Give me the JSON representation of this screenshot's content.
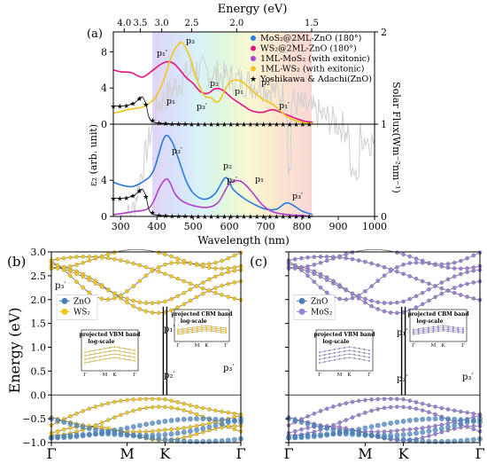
{
  "panel_a": {
    "letter": "(a)",
    "top_axis_label": "Energy (eV)",
    "top_ticks": [
      "4.0",
      "3.5",
      "3.0",
      "2.5",
      "2.0",
      "1.5"
    ],
    "right_axis_label": "Solar Flux(Wm⁻²nm⁻¹)",
    "right_ticks": [
      "0",
      "1",
      "2"
    ],
    "bottom_axis_label": "Wavelength (nm)",
    "left_axis_label": "ε₂ (arb. unit)",
    "left_ticks_upper": [
      "0",
      "4",
      "8"
    ],
    "left_ticks_lower": [
      "0",
      "4",
      "8"
    ],
    "legend": [
      {
        "label": "MoS₂@2ML-ZnO (180°)",
        "color": "#2a7ae2"
      },
      {
        "label": "WS₂@2ML-ZnO (180°)",
        "color": "#e8117f"
      },
      {
        "label": "1ML-MoS₂ (with exitonic)",
        "color": "#b23fcf"
      },
      {
        "label": "1ML-WS₂ (with exitonic)",
        "color": "#f5c518"
      },
      {
        "label": "Yoshikawa & Adachi(ZnO)",
        "color": "#000000"
      }
    ],
    "peak_labels_upper": [
      "p₃",
      "p₁′",
      "p₂",
      "p₃′",
      "p₂′",
      "p₁",
      "p₁′"
    ],
    "peak_labels_lower": [
      "p₁",
      "p₃′",
      "p₂",
      "p₁",
      "p₂′",
      "p₃′"
    ]
  },
  "panel_b": {
    "letter": "(b)",
    "y_axis_label": "Energy (eV)",
    "x_ticks": [
      "Γ",
      "M",
      "K",
      "Γ"
    ],
    "y_ticks": [
      "−1.0",
      "−0.5",
      "0.0",
      "0.5",
      "1.0",
      "1.5",
      "2.0",
      "2.5",
      "3.0"
    ],
    "legend": [
      {
        "label": "ZnO",
        "color": "#4a7fb5"
      },
      {
        "label": "WS₂",
        "color": "#f0c419"
      }
    ],
    "labels": [
      "p₃′",
      "p₁′",
      "p₂′",
      "p₃′"
    ],
    "inset_vbm_title": "projected VBM band",
    "inset_vbm_scale": "log-scale",
    "inset_cbm_title": "projected CBM band",
    "inset_cbm_scale": "log-scale",
    "inset_x_ticks": [
      "Γ",
      "M",
      "K",
      "Γ"
    ]
  },
  "panel_c": {
    "letter": "(c)",
    "x_ticks": [
      "Γ",
      "M",
      "K",
      "Γ"
    ],
    "legend": [
      {
        "label": "ZnO",
        "color": "#4a7fb5"
      },
      {
        "label": "MoS₂",
        "color": "#9b7fd4"
      }
    ],
    "labels": [
      "p₁′",
      "p₂′",
      "p₃′"
    ],
    "inset_vbm_title": "projected VBM band",
    "inset_vbm_scale": "log-scale",
    "inset_cbm_title": "projected CBM band",
    "inset_cbm_scale": "log-scale",
    "inset_x_ticks": [
      "Γ",
      "M",
      "K",
      "Γ"
    ]
  },
  "chart_data": [
    {
      "type": "line",
      "title": "",
      "xlabel": "Wavelength (nm)",
      "ylabel": "ε₂ (arb. unit)",
      "xlim": [
        280,
        1000
      ],
      "x_ticks": [
        300,
        400,
        500,
        600,
        700,
        800,
        900,
        1000
      ],
      "series": [
        {
          "name": "WS₂@2ML-ZnO (180°)",
          "x": [
            280,
            300,
            330,
            360,
            390,
            410,
            430,
            450,
            480,
            500,
            520,
            540,
            560,
            580,
            610,
            640,
            660,
            690,
            720,
            760,
            800,
            830
          ],
          "y": [
            6.0,
            5.8,
            5.7,
            5.2,
            6.0,
            6.6,
            6.9,
            6.6,
            5.2,
            4.5,
            3.6,
            3.4,
            3.9,
            3.8,
            2.8,
            2.0,
            1.5,
            1.3,
            1.6,
            1.0,
            0.4,
            0.2
          ]
        },
        {
          "name": "1ML-WS₂ (with exitonic)",
          "x": [
            280,
            320,
            360,
            385,
            400,
            420,
            440,
            455,
            470,
            490,
            510,
            530,
            550,
            570,
            600,
            630,
            660,
            690,
            720,
            760,
            800,
            830
          ],
          "y": [
            1.2,
            1.6,
            1.9,
            2.5,
            3.2,
            5.0,
            7.5,
            8.6,
            9.0,
            7.5,
            5.0,
            3.2,
            2.9,
            2.5,
            4.6,
            4.8,
            3.8,
            2.8,
            2.2,
            0.8,
            0.2,
            0.1
          ]
        },
        {
          "name": "MoS₂@2ML-ZnO (180°)",
          "x": [
            280,
            300,
            330,
            360,
            390,
            420,
            440,
            460,
            480,
            500,
            530,
            560,
            590,
            610,
            640,
            670,
            700,
            730,
            760,
            800,
            830
          ],
          "y": [
            3.8,
            3.5,
            3.3,
            3.8,
            5.0,
            8.7,
            8.4,
            6.3,
            4.0,
            2.6,
            1.9,
            2.5,
            4.3,
            3.0,
            2.0,
            1.3,
            0.8,
            0.8,
            1.5,
            0.6,
            0.2
          ]
        },
        {
          "name": "1ML-MoS₂ (with exitonic)",
          "x": [
            280,
            330,
            380,
            410,
            430,
            450,
            470,
            500,
            540,
            570,
            600,
            630,
            660,
            690,
            720,
            760,
            800,
            830
          ],
          "y": [
            0.2,
            0.5,
            1.0,
            3.4,
            4.1,
            2.5,
            1.7,
            1.2,
            1.0,
            1.6,
            3.6,
            3.9,
            2.8,
            1.3,
            0.5,
            0.2,
            0.1,
            0.0
          ]
        },
        {
          "name": "Yoshikawa & Adachi(ZnO)",
          "x": [
            280,
            300,
            320,
            340,
            350,
            360,
            370,
            380,
            400,
            450,
            500,
            550,
            600,
            650,
            700,
            750,
            800,
            830
          ],
          "y": [
            2.0,
            2.0,
            2.1,
            2.4,
            2.8,
            3.0,
            2.2,
            0.6,
            0.15,
            0.05,
            0.02,
            0.01,
            0.0,
            0.0,
            0.0,
            0.0,
            0.0,
            0.0
          ]
        }
      ]
    },
    {
      "type": "line",
      "title": "",
      "ylabel": "Energy (eV)",
      "x_ticks": [
        "Γ",
        "M",
        "K",
        "Γ"
      ],
      "ylim": [
        -1.0,
        3.0
      ],
      "series": [
        {
          "name": "WS₂",
          "note": "band structure"
        },
        {
          "name": "ZnO",
          "note": "band structure"
        }
      ]
    },
    {
      "type": "line",
      "title": "",
      "x_ticks": [
        "Γ",
        "M",
        "K",
        "Γ"
      ],
      "ylim": [
        -1.0,
        3.0
      ],
      "series": [
        {
          "name": "MoS₂",
          "note": "band structure"
        },
        {
          "name": "ZnO",
          "note": "band structure"
        }
      ]
    }
  ]
}
